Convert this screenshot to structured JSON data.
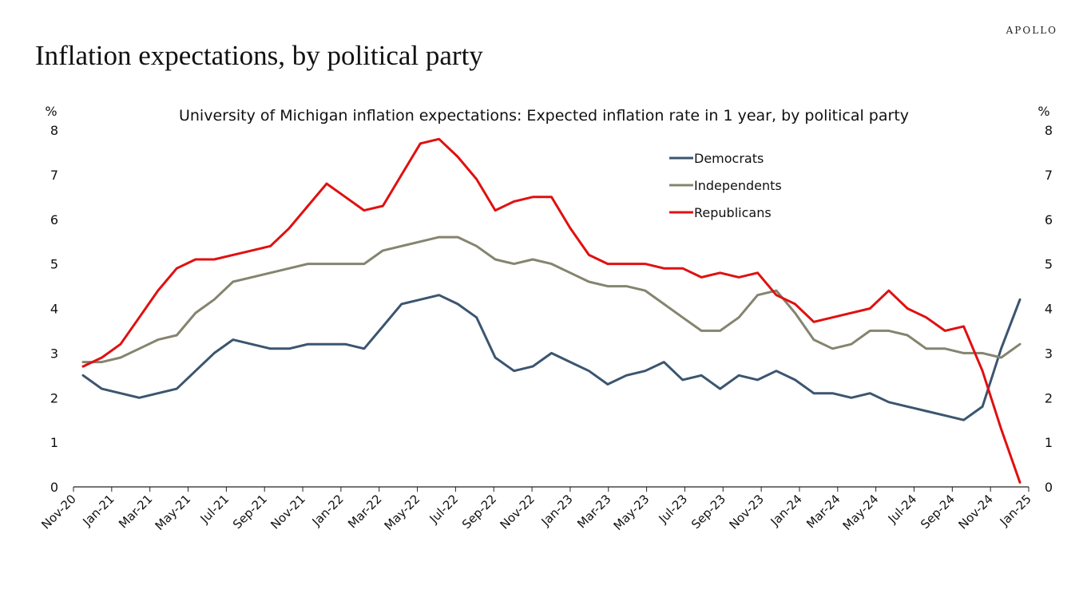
{
  "header": {
    "brand": "APOLLO",
    "title": "Inflation expectations, by political party"
  },
  "chart_data": {
    "type": "line",
    "title": "University of Michigan inflation expectations: Expected inflation rate in 1 year, by political party",
    "ylabel_left": "%",
    "ylabel_right": "%",
    "ylim": [
      0,
      8
    ],
    "yticks": [
      0,
      1,
      2,
      3,
      4,
      5,
      6,
      7,
      8
    ],
    "grid": false,
    "legend": "top-right",
    "x": [
      "Nov-20",
      "Dec-20",
      "Jan-21",
      "Feb-21",
      "Mar-21",
      "Apr-21",
      "May-21",
      "Jun-21",
      "Jul-21",
      "Aug-21",
      "Sep-21",
      "Oct-21",
      "Nov-21",
      "Dec-21",
      "Jan-22",
      "Feb-22",
      "Mar-22",
      "Apr-22",
      "May-22",
      "Jun-22",
      "Jul-22",
      "Aug-22",
      "Sep-22",
      "Oct-22",
      "Nov-22",
      "Dec-22",
      "Jan-23",
      "Feb-23",
      "Mar-23",
      "Apr-23",
      "May-23",
      "Jun-23",
      "Jul-23",
      "Aug-23",
      "Sep-23",
      "Oct-23",
      "Nov-23",
      "Dec-23",
      "Jan-24",
      "Feb-24",
      "Mar-24",
      "Apr-24",
      "May-24",
      "Jun-24",
      "Jul-24",
      "Aug-24",
      "Sep-24",
      "Oct-24",
      "Nov-24",
      "Dec-24",
      "Jan-25"
    ],
    "xtick_labels": [
      "Nov-20",
      "Jan-21",
      "Mar-21",
      "May-21",
      "Jul-21",
      "Sep-21",
      "Nov-21",
      "Jan-22",
      "Mar-22",
      "May-22",
      "Jul-22",
      "Sep-22",
      "Nov-22",
      "Jan-23",
      "Mar-23",
      "May-23",
      "Jul-23",
      "Sep-23",
      "Nov-23",
      "Jan-24",
      "Mar-24",
      "May-24",
      "Jul-24",
      "Sep-24",
      "Nov-24",
      "Jan-25"
    ],
    "series": [
      {
        "name": "Democrats",
        "color": "#3b5570",
        "values": [
          2.5,
          2.2,
          2.1,
          2.0,
          2.1,
          2.2,
          2.6,
          3.0,
          3.3,
          3.2,
          3.1,
          3.1,
          3.2,
          3.2,
          3.2,
          3.1,
          3.6,
          4.1,
          4.2,
          4.3,
          4.1,
          3.8,
          2.9,
          2.6,
          2.7,
          3.0,
          2.8,
          2.6,
          2.3,
          2.5,
          2.6,
          2.8,
          2.4,
          2.5,
          2.2,
          2.5,
          2.4,
          2.6,
          2.4,
          2.1,
          2.1,
          2.0,
          2.1,
          1.9,
          1.8,
          1.7,
          1.6,
          1.5,
          1.8,
          3.1,
          4.2
        ]
      },
      {
        "name": "Independents",
        "color": "#85846f",
        "values": [
          2.8,
          2.8,
          2.9,
          3.1,
          3.3,
          3.4,
          3.9,
          4.2,
          4.6,
          4.7,
          4.8,
          4.9,
          5.0,
          5.0,
          5.0,
          5.0,
          5.3,
          5.4,
          5.5,
          5.6,
          5.6,
          5.4,
          5.1,
          5.0,
          5.1,
          5.0,
          4.8,
          4.6,
          4.5,
          4.5,
          4.4,
          4.1,
          3.8,
          3.5,
          3.5,
          3.8,
          4.3,
          4.4,
          3.9,
          3.3,
          3.1,
          3.2,
          3.5,
          3.5,
          3.4,
          3.1,
          3.1,
          3.0,
          3.0,
          2.9,
          3.2
        ]
      },
      {
        "name": "Republicans",
        "color": "#e01010",
        "values": [
          2.7,
          2.9,
          3.2,
          3.8,
          4.4,
          4.9,
          5.1,
          5.1,
          5.2,
          5.3,
          5.4,
          5.8,
          6.3,
          6.8,
          6.5,
          6.2,
          6.3,
          7.0,
          7.7,
          7.8,
          7.4,
          6.9,
          6.2,
          6.4,
          6.5,
          6.5,
          5.8,
          5.2,
          5.0,
          5.0,
          5.0,
          4.9,
          4.9,
          4.7,
          4.8,
          4.7,
          4.8,
          4.3,
          4.1,
          3.7,
          3.8,
          3.9,
          4.0,
          4.4,
          4.0,
          3.8,
          3.5,
          3.6,
          2.6,
          1.3,
          0.1
        ]
      }
    ]
  }
}
